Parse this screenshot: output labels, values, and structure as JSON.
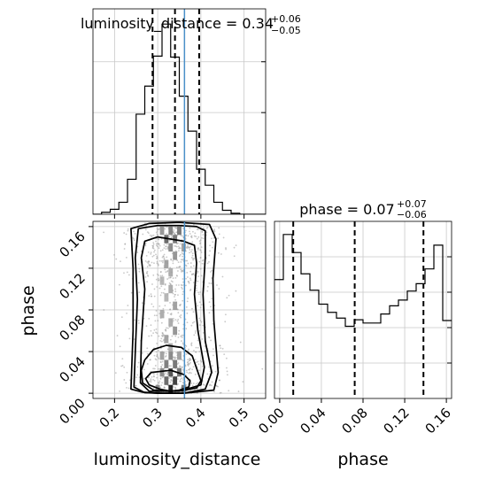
{
  "chart_data": {
    "type": "corner",
    "parameters": [
      "luminosity_distance",
      "phase"
    ],
    "titles": {
      "luminosity_distance": {
        "prefix": "luminosity_distance = ",
        "value": "0.34",
        "plus": "+0.06",
        "minus": "−0.05"
      },
      "phase": {
        "prefix": "phase = ",
        "value": "0.07",
        "plus": "+0.07",
        "minus": "−0.06"
      }
    },
    "axis_labels": {
      "x1": "luminosity_distance",
      "x2": "phase",
      "y": "phase"
    },
    "ranges": {
      "luminosity_distance": [
        0.15,
        0.55
      ],
      "phase": [
        -0.005,
        0.165
      ]
    },
    "ticks": {
      "luminosity_distance": [
        0.2,
        0.3,
        0.4,
        0.5
      ],
      "luminosity_distance_labels": [
        "0.2",
        "0.3",
        "0.4",
        "0.5"
      ],
      "phase": [
        0.0,
        0.04,
        0.08,
        0.12,
        0.16
      ],
      "phase_labels": [
        "0.00",
        "0.04",
        "0.08",
        "0.12",
        "0.16"
      ]
    },
    "grid": true,
    "truth": {
      "luminosity_distance": 0.362
    },
    "quantiles": {
      "luminosity_distance": [
        0.288,
        0.34,
        0.396
      ],
      "phase": [
        0.013,
        0.072,
        0.138
      ]
    },
    "hist_luminosity_distance": {
      "edges": [
        0.15,
        0.17,
        0.19,
        0.21,
        0.23,
        0.25,
        0.27,
        0.29,
        0.31,
        0.33,
        0.35,
        0.37,
        0.39,
        0.41,
        0.43,
        0.45,
        0.47,
        0.49,
        0.51,
        0.53,
        0.55
      ],
      "values": [
        0,
        2,
        5,
        12,
        35,
        100,
        128,
        158,
        190,
        157,
        118,
        83,
        45,
        29,
        12,
        4,
        1,
        0,
        0,
        0
      ]
    },
    "hist_phase": {
      "edges": [
        -0.005,
        0.0035,
        0.012,
        0.0205,
        0.029,
        0.0375,
        0.046,
        0.0545,
        0.063,
        0.0715,
        0.08,
        0.0885,
        0.097,
        0.1055,
        0.114,
        0.1225,
        0.131,
        0.1395,
        0.148,
        0.1565,
        0.165
      ],
      "values": [
        145,
        200,
        178,
        152,
        132,
        115,
        105,
        98,
        88,
        96,
        92,
        92,
        103,
        113,
        120,
        131,
        140,
        158,
        187,
        95
      ]
    },
    "contour_levels": [
      [
        [
          0.305,
          0.004
        ],
        [
          0.28,
          0.008
        ],
        [
          0.272,
          0.014
        ],
        [
          0.285,
          0.02
        ],
        [
          0.33,
          0.022
        ],
        [
          0.36,
          0.018
        ],
        [
          0.375,
          0.012
        ],
        [
          0.372,
          0.006
        ],
        [
          0.35,
          0.003
        ],
        [
          0.33,
          0.002
        ]
      ],
      [
        [
          0.29,
          0.003
        ],
        [
          0.265,
          0.01
        ],
        [
          0.262,
          0.022
        ],
        [
          0.27,
          0.032
        ],
        [
          0.29,
          0.042
        ],
        [
          0.32,
          0.046
        ],
        [
          0.355,
          0.044
        ],
        [
          0.38,
          0.036
        ],
        [
          0.39,
          0.024
        ],
        [
          0.4,
          0.012
        ],
        [
          0.39,
          0.005
        ],
        [
          0.35,
          0.002
        ],
        [
          0.32,
          0.002
        ]
      ],
      [
        [
          0.28,
          0.002
        ],
        [
          0.26,
          0.01
        ],
        [
          0.262,
          0.05
        ],
        [
          0.27,
          0.1
        ],
        [
          0.262,
          0.13
        ],
        [
          0.27,
          0.146
        ],
        [
          0.3,
          0.15
        ],
        [
          0.33,
          0.148
        ],
        [
          0.36,
          0.146
        ],
        [
          0.385,
          0.142
        ],
        [
          0.39,
          0.125
        ],
        [
          0.385,
          0.095
        ],
        [
          0.393,
          0.06
        ],
        [
          0.408,
          0.025
        ],
        [
          0.4,
          0.008
        ],
        [
          0.36,
          0.003
        ],
        [
          0.32,
          0.002
        ]
      ],
      [
        [
          0.27,
          0.0005
        ],
        [
          0.245,
          0.006
        ],
        [
          0.248,
          0.04
        ],
        [
          0.253,
          0.09
        ],
        [
          0.248,
          0.13
        ],
        [
          0.255,
          0.158
        ],
        [
          0.3,
          0.161
        ],
        [
          0.35,
          0.161
        ],
        [
          0.39,
          0.16
        ],
        [
          0.41,
          0.156
        ],
        [
          0.41,
          0.13
        ],
        [
          0.405,
          0.095
        ],
        [
          0.41,
          0.05
        ],
        [
          0.425,
          0.02
        ],
        [
          0.41,
          0.004
        ],
        [
          0.36,
          0.0
        ],
        [
          0.31,
          0.0
        ]
      ],
      [
        [
          0.265,
          0.001
        ],
        [
          0.238,
          0.004
        ],
        [
          0.243,
          0.06
        ],
        [
          0.243,
          0.12
        ],
        [
          0.238,
          0.158
        ],
        [
          0.28,
          0.163
        ],
        [
          0.35,
          0.164
        ],
        [
          0.42,
          0.162
        ],
        [
          0.435,
          0.148
        ],
        [
          0.428,
          0.11
        ],
        [
          0.43,
          0.07
        ],
        [
          0.44,
          0.02
        ],
        [
          0.43,
          0.003
        ],
        [
          0.36,
          0.0
        ],
        [
          0.3,
          0.0
        ]
      ]
    ],
    "density_cells": [
      [
        0.33,
        0.004,
        0.95
      ],
      [
        0.34,
        0.012,
        0.8
      ],
      [
        0.32,
        0.012,
        0.6
      ],
      [
        0.33,
        0.02,
        0.7
      ],
      [
        0.35,
        0.02,
        0.55
      ],
      [
        0.31,
        0.02,
        0.45
      ],
      [
        0.3,
        0.004,
        0.45
      ],
      [
        0.36,
        0.004,
        0.55
      ],
      [
        0.32,
        0.028,
        0.5
      ],
      [
        0.34,
        0.028,
        0.55
      ],
      [
        0.33,
        0.036,
        0.45
      ],
      [
        0.31,
        0.036,
        0.35
      ],
      [
        0.35,
        0.036,
        0.35
      ],
      [
        0.33,
        0.044,
        0.3
      ],
      [
        0.32,
        0.052,
        0.35
      ],
      [
        0.34,
        0.06,
        0.4
      ],
      [
        0.33,
        0.068,
        0.3
      ],
      [
        0.31,
        0.076,
        0.3
      ],
      [
        0.34,
        0.084,
        0.35
      ],
      [
        0.32,
        0.092,
        0.25
      ],
      [
        0.33,
        0.1,
        0.3
      ],
      [
        0.31,
        0.108,
        0.25
      ],
      [
        0.33,
        0.116,
        0.3
      ],
      [
        0.32,
        0.124,
        0.35
      ],
      [
        0.34,
        0.132,
        0.4
      ],
      [
        0.33,
        0.14,
        0.45
      ],
      [
        0.32,
        0.148,
        0.6
      ],
      [
        0.34,
        0.148,
        0.55
      ],
      [
        0.35,
        0.156,
        0.55
      ],
      [
        0.33,
        0.156,
        0.5
      ],
      [
        0.31,
        0.156,
        0.4
      ],
      [
        0.36,
        0.14,
        0.35
      ]
    ]
  }
}
